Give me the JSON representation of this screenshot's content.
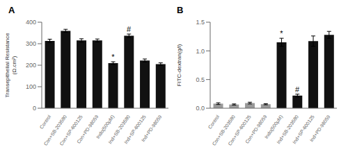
{
  "chart_data": [
    {
      "type": "bar",
      "title": "A",
      "categories": [
        "Control",
        "Con+SB-203580",
        "Con+SP-600125",
        "Con+PD-98059",
        "Indo(500µM)",
        "Ind+SB-203580",
        "Ind+SP-600125",
        "Ind+PD-98059"
      ],
      "values": [
        313,
        360,
        315,
        315,
        210,
        337,
        222,
        205
      ],
      "errors": [
        8,
        7,
        8,
        7,
        6,
        8,
        7,
        6
      ],
      "color": "#111111",
      "ylabel": "Transepithelial Resistance\n(Ω.cm²)",
      "ylim": [
        0,
        400
      ],
      "yticks": [
        0,
        100,
        200,
        300,
        400
      ],
      "grid": false,
      "annotations": [
        {
          "text": "*",
          "x": "Indo(500µM)"
        },
        {
          "text": "#",
          "x": "Ind+SB-203580"
        }
      ]
    },
    {
      "type": "bar",
      "title": "B",
      "categories": [
        "Control",
        "Con+SB-203580",
        "Con+SP-600125",
        "Con+PD-98059",
        "Indo(500µM)",
        "Ind+SB-203580",
        "Ind+SP-600125",
        "Ind+PD-98059"
      ],
      "values": [
        0.08,
        0.065,
        0.09,
        0.07,
        1.15,
        0.22,
        1.17,
        1.28
      ],
      "errors": [
        0.015,
        0.01,
        0.015,
        0.01,
        0.07,
        0.025,
        0.09,
        0.06
      ],
      "colors": [
        "#999999",
        "#999999",
        "#999999",
        "#999999",
        "#111111",
        "#111111",
        "#111111",
        "#111111"
      ],
      "ylabel": "FITC-dextran(g/l)",
      "ylim": [
        0,
        1.5
      ],
      "yticks": [
        {
          "value": 0,
          "label": "0.0"
        },
        0.5,
        {
          "value": 1,
          "label": "1.0"
        },
        1.5
      ],
      "grid": false,
      "annotations": [
        {
          "text": "*",
          "x": "Indo(500µM)"
        },
        {
          "text": "#",
          "x": "Ind+SB-203580"
        }
      ]
    }
  ]
}
